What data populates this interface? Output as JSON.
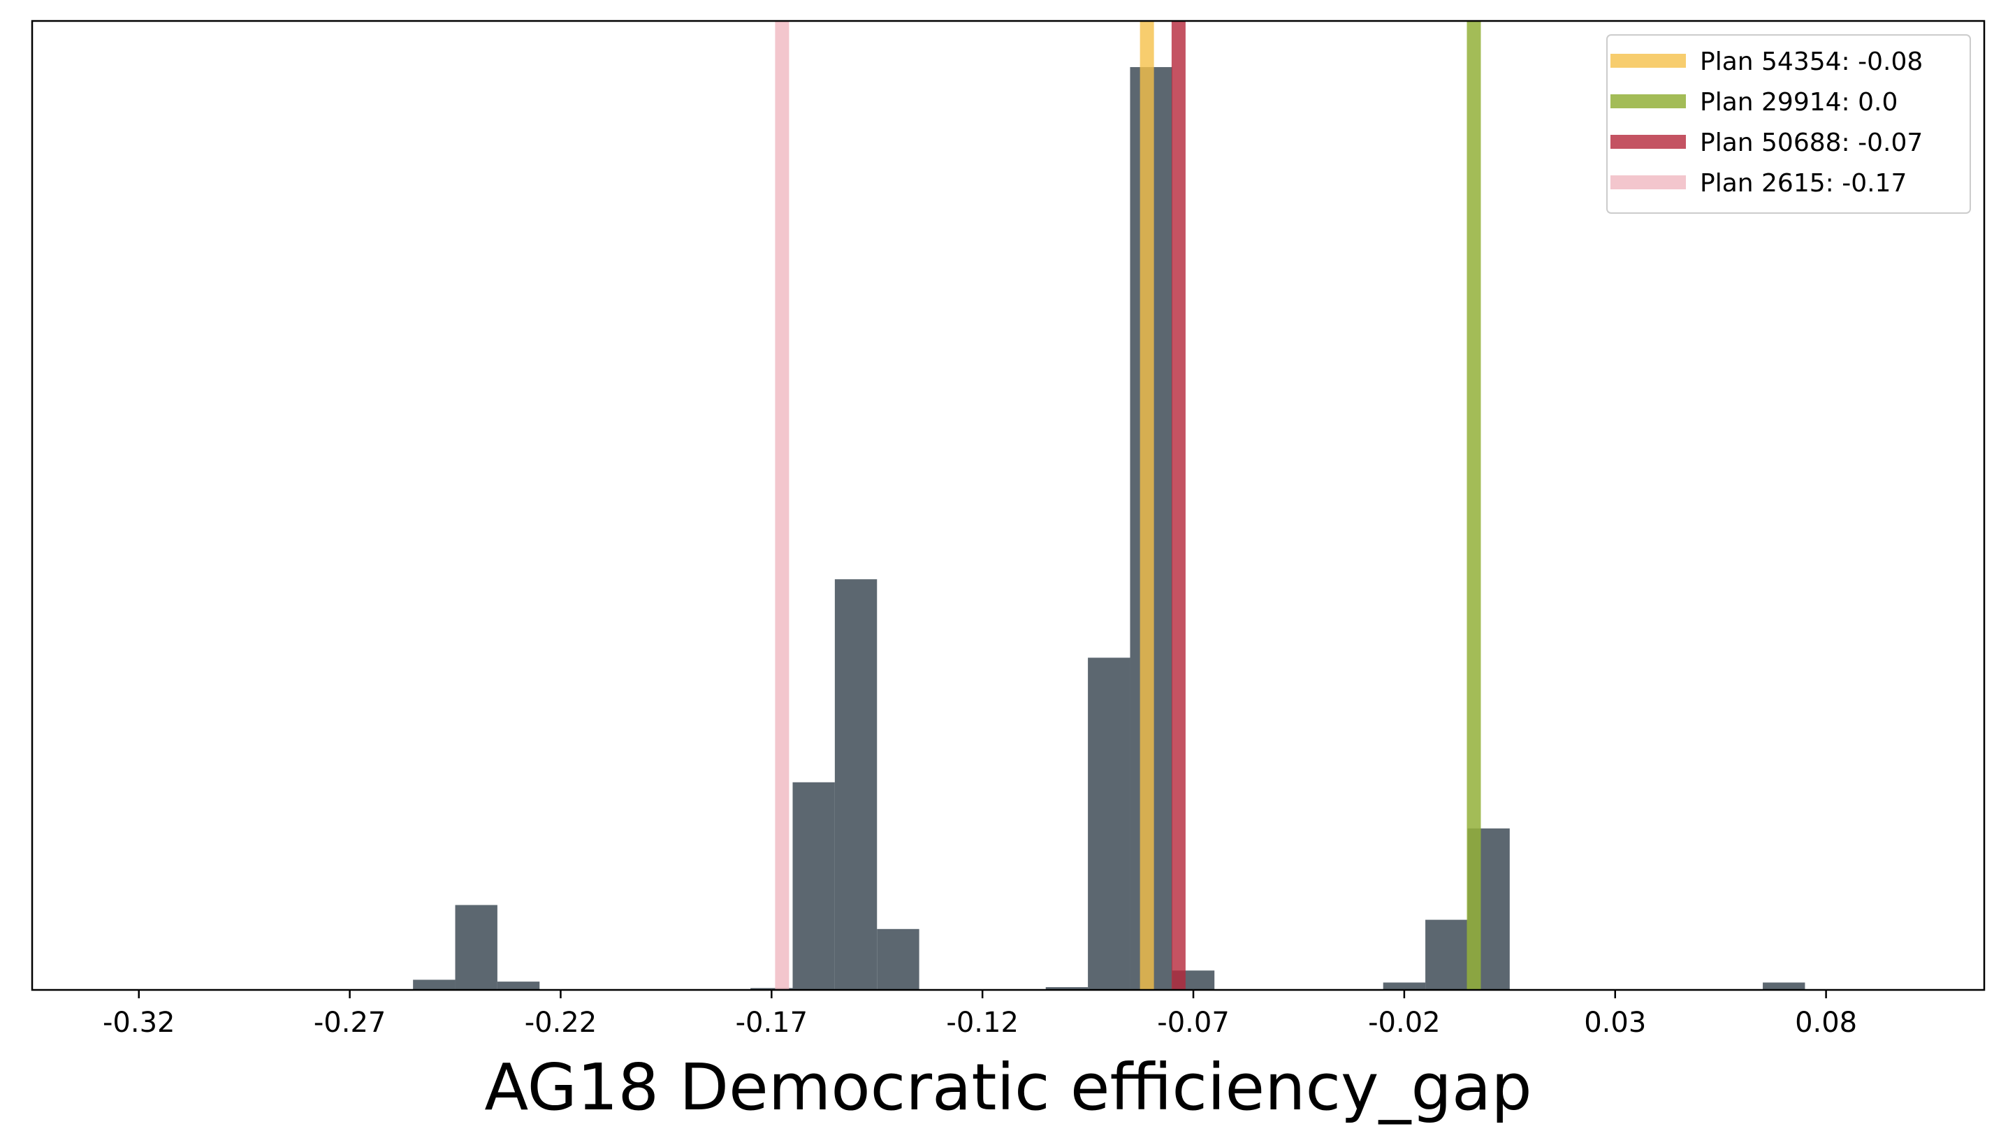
{
  "chart_data": {
    "type": "histogram",
    "title": "",
    "xlabel": "AG18 Democratic efficiency_gap",
    "ylabel": "",
    "xlim": [
      -0.3453,
      0.1175
    ],
    "ylim": [
      0,
      1.05
    ],
    "y_ticks_shown": false,
    "grid": false,
    "x_ticks": [
      -0.32,
      -0.27,
      -0.22,
      -0.17,
      -0.12,
      -0.07,
      -0.02,
      0.03,
      0.08
    ],
    "x_tick_labels": [
      "-0.32",
      "-0.27",
      "-0.22",
      "-0.17",
      "-0.12",
      "-0.07",
      "-0.02",
      "0.03",
      "0.08"
    ],
    "bar_color": "#5c6770",
    "histogram": {
      "bin_width": 0.01,
      "bins": [
        {
          "left": -0.255,
          "count": 0.011
        },
        {
          "left": -0.245,
          "count": 0.092
        },
        {
          "left": -0.235,
          "count": 0.009
        },
        {
          "left": -0.175,
          "count": 0.002
        },
        {
          "left": -0.165,
          "count": 0.225
        },
        {
          "left": -0.155,
          "count": 0.445
        },
        {
          "left": -0.145,
          "count": 0.066
        },
        {
          "left": -0.105,
          "count": 0.003
        },
        {
          "left": -0.095,
          "count": 0.36
        },
        {
          "left": -0.085,
          "count": 1.0
        },
        {
          "left": -0.075,
          "count": 0.021
        },
        {
          "left": -0.025,
          "count": 0.008
        },
        {
          "left": -0.015,
          "count": 0.076
        },
        {
          "left": -0.005,
          "count": 0.175
        },
        {
          "left": 0.065,
          "count": 0.008
        }
      ]
    },
    "vlines": [
      {
        "name": "Plan 54354: -0.08",
        "x": -0.081,
        "color": "#f5c04a",
        "alpha": 0.8
      },
      {
        "name": "Plan 29914: 0.0",
        "x": -0.0035,
        "color": "#93b03a",
        "alpha": 0.85
      },
      {
        "name": "Plan 50688: -0.07",
        "x": -0.0735,
        "color": "#b5283b",
        "alpha": 0.8
      },
      {
        "name": "Plan 2615: -0.17",
        "x": -0.1675,
        "color": "#f0b8c0",
        "alpha": 0.8
      }
    ],
    "legend_position": "top-right"
  }
}
